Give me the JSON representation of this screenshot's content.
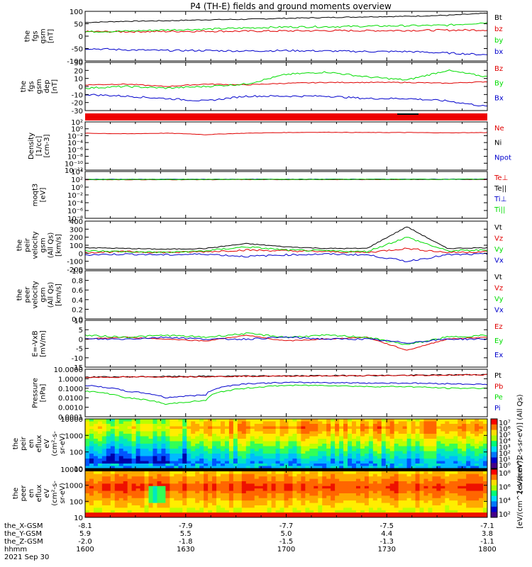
{
  "title": "P4 (TH-E) fields and ground moments overview",
  "colors": {
    "black": "#000000",
    "red": "#e00000",
    "green": "#00dd00",
    "blue": "#0000cc"
  },
  "chart_data": {
    "type": "line",
    "x": {
      "ticks": [
        [
          "-8.1",
          "5.9",
          "-2.0",
          "1600"
        ],
        [
          "-7.9",
          "5.5",
          "-1.8",
          "1630"
        ],
        [
          "-7.7",
          "5.0",
          "-1.5",
          "1700"
        ],
        [
          "-7.5",
          "4.4",
          "-1.3",
          "1730"
        ],
        [
          "-7.1",
          "3.8",
          "-1.1",
          "1800"
        ]
      ],
      "row_labels": [
        "the_X-GSM",
        "the_Y-GSM",
        "the_Z-GSM",
        "hhmm"
      ],
      "date": "2021 Sep 30"
    },
    "panels": [
      {
        "id": "fgs_gsm",
        "ylabel": [
          "the",
          "fgs",
          "gsm",
          "[nT]"
        ],
        "scale": "linear",
        "ylim": [
          -100,
          100
        ],
        "ticks": [
          "100",
          "50",
          "0",
          "-50",
          "-100"
        ],
        "series": [
          {
            "name": "Bt",
            "color": "black",
            "approx": [
              55,
              60,
              62,
              66,
              68,
              72,
              75,
              78,
              80,
              84,
              92
            ]
          },
          {
            "name": "bz",
            "color": "red",
            "approx": [
              18,
              18,
              19,
              20,
              20,
              21,
              22,
              22,
              23,
              24,
              25
            ]
          },
          {
            "name": "by",
            "color": "green",
            "approx": [
              18,
              20,
              25,
              28,
              33,
              37,
              38,
              40,
              42,
              44,
              55
            ]
          },
          {
            "name": "bx",
            "color": "blue",
            "approx": [
              -50,
              -55,
              -58,
              -58,
              -60,
              -58,
              -60,
              -62,
              -62,
              -68,
              -75
            ]
          }
        ]
      },
      {
        "id": "fgs_gsm_dep",
        "ylabel": [
          "the",
          "fgs",
          "gsm",
          "dep",
          "[nT]"
        ],
        "scale": "linear",
        "ylim": [
          -30,
          30
        ],
        "ticks": [
          "30",
          "20",
          "10",
          "0",
          "-10",
          "-20",
          "-30"
        ],
        "series": [
          {
            "name": "Bz",
            "color": "red",
            "approx": [
              2,
              3,
              0,
              3,
              2,
              4,
              5,
              5,
              5,
              4,
              6
            ]
          },
          {
            "name": "By",
            "color": "green",
            "approx": [
              -2,
              0,
              -2,
              0,
              3,
              15,
              18,
              12,
              8,
              20,
              12
            ]
          },
          {
            "name": "Bx",
            "color": "blue",
            "approx": [
              -10,
              -12,
              -15,
              -18,
              -12,
              -12,
              -12,
              -15,
              -15,
              -18,
              -25
            ]
          }
        ]
      },
      {
        "id": "density",
        "ylabel": [
          "Density",
          "[1/cc]",
          "[cm-3]"
        ],
        "scale": "log",
        "ylim": [
          -12,
          3
        ],
        "ticks": [
          "10²",
          "10⁰",
          "10⁻²",
          "10⁻⁴",
          "10⁻⁶",
          "10⁻⁸",
          "10⁻¹⁰",
          "10⁻¹²"
        ],
        "series": [
          {
            "name": "Ne",
            "color": "red",
            "approx": [
              0.3,
              0.2,
              0.3,
              0.1,
              0.3,
              0.5,
              0.6,
              0.5,
              0.5,
              0.4,
              0.5
            ]
          },
          {
            "name": "Ni",
            "color": "black",
            "approx": []
          },
          {
            "name": "Npot",
            "color": "blue",
            "approx": []
          }
        ]
      },
      {
        "id": "temperature",
        "ylabel": [
          "moqt3",
          "[eV]"
        ],
        "scale": "log",
        "ylim": [
          -12,
          3
        ],
        "ticks": [
          "10⁴",
          "10²",
          "10⁰",
          "10⁻²",
          "10⁻⁴",
          "10⁻⁶",
          "10⁻⁸"
        ],
        "series": [
          {
            "name": "Te⊥",
            "color": "red",
            "approx": [
              2.3,
              2.4,
              2.4,
              2.5,
              2.6,
              2.6,
              2.6,
              2.7,
              2.7,
              2.8,
              2.8
            ]
          },
          {
            "name": "Te||",
            "color": "black",
            "approx": [
              2.7,
              2.8,
              2.8,
              2.9,
              3.0,
              3.0,
              3.0,
              3.1,
              3.1,
              3.2,
              3.2
            ]
          },
          {
            "name": "Ti⊥",
            "color": "blue",
            "approx": [
              3.2,
              3.3,
              3.3,
              3.3,
              3.4,
              3.4,
              3.5,
              3.5,
              3.5,
              3.5,
              3.6
            ]
          },
          {
            "name": "Ti||",
            "color": "green",
            "approx": [
              2.9,
              3.0,
              3.0,
              3.1,
              3.2,
              3.2,
              3.3,
              3.3,
              3.3,
              3.3,
              3.4
            ]
          }
        ]
      },
      {
        "id": "peir_velocity",
        "ylabel": [
          "the",
          "peir",
          "velocity",
          "gsm",
          "(All Qs)",
          "[km/s]"
        ],
        "scale": "linear",
        "ylim": [
          -200,
          400
        ],
        "ticks": [
          "400",
          "300",
          "200",
          "100",
          "0",
          "-100",
          "-200"
        ],
        "series": [
          {
            "name": "Vt",
            "color": "black",
            "approx": [
              70,
              60,
              50,
              60,
              120,
              80,
              60,
              60,
              330,
              60,
              70
            ]
          },
          {
            "name": "Vz",
            "color": "red",
            "approx": [
              10,
              20,
              10,
              20,
              40,
              30,
              20,
              10,
              60,
              10,
              20
            ]
          },
          {
            "name": "Vy",
            "color": "green",
            "approx": [
              30,
              20,
              10,
              30,
              80,
              40,
              30,
              20,
              200,
              30,
              40
            ]
          },
          {
            "name": "Vx",
            "color": "blue",
            "approx": [
              -20,
              -10,
              -20,
              -10,
              -40,
              -20,
              -10,
              -20,
              -100,
              -20,
              -10
            ]
          }
        ]
      },
      {
        "id": "peer_velocity",
        "ylabel": [
          "the",
          "peer",
          "velocity",
          "gsm",
          "(All Qs)",
          "[km/s]"
        ],
        "scale": "linear",
        "ylim": [
          0,
          1
        ],
        "ticks": [
          "1.0",
          "0.8",
          "0.6",
          "0.4",
          "0.2",
          "0.0"
        ],
        "series": [
          {
            "name": "Vt",
            "color": "black",
            "approx": []
          },
          {
            "name": "Vz",
            "color": "red",
            "approx": []
          },
          {
            "name": "Vy",
            "color": "green",
            "approx": []
          },
          {
            "name": "Vx",
            "color": "blue",
            "approx": []
          }
        ]
      },
      {
        "id": "efield",
        "ylabel": [
          "E=-VxB",
          "[mV/m]"
        ],
        "scale": "linear",
        "ylim": [
          -15,
          10
        ],
        "ticks": [
          "10",
          "5",
          "0",
          "-5",
          "-10",
          "-15"
        ],
        "series": [
          {
            "name": "Ez",
            "color": "red",
            "approx": [
              0,
              1,
              0,
              -1,
              2,
              -1,
              0,
              1,
              -6,
              0,
              1
            ]
          },
          {
            "name": "Ey",
            "color": "green",
            "approx": [
              2,
              1,
              2,
              1,
              3,
              1,
              2,
              1,
              -3,
              1,
              2
            ]
          },
          {
            "name": "Ex",
            "color": "blue",
            "approx": [
              0,
              0,
              1,
              0,
              0,
              1,
              0,
              0,
              -2,
              0,
              0
            ]
          }
        ]
      },
      {
        "id": "pressure",
        "ylabel": [
          "Pressure",
          "[nPa]"
        ],
        "scale": "log",
        "ylim": [
          -4,
          1
        ],
        "ticks": [
          "10.0000",
          "1.0000",
          "0.1000",
          "0.0100",
          "0.0010",
          "0.0001"
        ],
        "series": [
          {
            "name": "Pt",
            "color": "black",
            "approx": [
              1.5,
              1.6,
              1.7,
              1.8,
              1.9,
              2.0,
              2.1,
              2.2,
              2.3,
              2.5,
              2.8
            ]
          },
          {
            "name": "Pb",
            "color": "red",
            "approx": [
              1.4,
              1.5,
              1.6,
              1.7,
              1.8,
              1.9,
              2.0,
              2.1,
              2.2,
              2.4,
              2.7
            ]
          },
          {
            "name": "Pe",
            "color": "green",
            "approx": [
              0.05,
              0.01,
              0.002,
              0.005,
              0.1,
              0.2,
              0.2,
              0.15,
              0.15,
              0.1,
              0.1
            ]
          },
          {
            "name": "Pi",
            "color": "blue",
            "approx": [
              0.2,
              0.05,
              0.01,
              0.02,
              0.3,
              0.4,
              0.4,
              0.35,
              0.35,
              0.3,
              0.25
            ]
          }
        ]
      },
      {
        "id": "peir_eflux",
        "type": "heatmap",
        "ylabel": [
          "the",
          "peir",
          "en",
          "eflux",
          "eV",
          "(cm²-s-",
          "sr-eV)"
        ],
        "scale": "log",
        "ylim": [
          0.7,
          4.3
        ],
        "ticks": [
          "10000",
          "1000",
          "100",
          "10"
        ],
        "colorbar": {
          "label": "[eV/(cm^2-s-sr-eV)] (All Qs)",
          "ticks": [
            "10⁷",
            "10⁶",
            "10⁵",
            "10⁴",
            "10³",
            "10²",
            "10¹",
            "10⁰"
          ]
        }
      },
      {
        "id": "peer_eflux",
        "type": "heatmap",
        "ylabel": [
          "the",
          "peer",
          "en",
          "eflux",
          "eV",
          "(cm²-s-",
          "sr-eV)"
        ],
        "scale": "log",
        "ylim": [
          0.7,
          4.3
        ],
        "ticks": [
          "10000",
          "1000",
          "100",
          "10"
        ],
        "colorbar": {
          "label": "[eV/(cm^2-s-sr-eV)]",
          "ticks": [
            "10⁸",
            "10⁶",
            "10⁴",
            "10²"
          ]
        }
      }
    ]
  }
}
